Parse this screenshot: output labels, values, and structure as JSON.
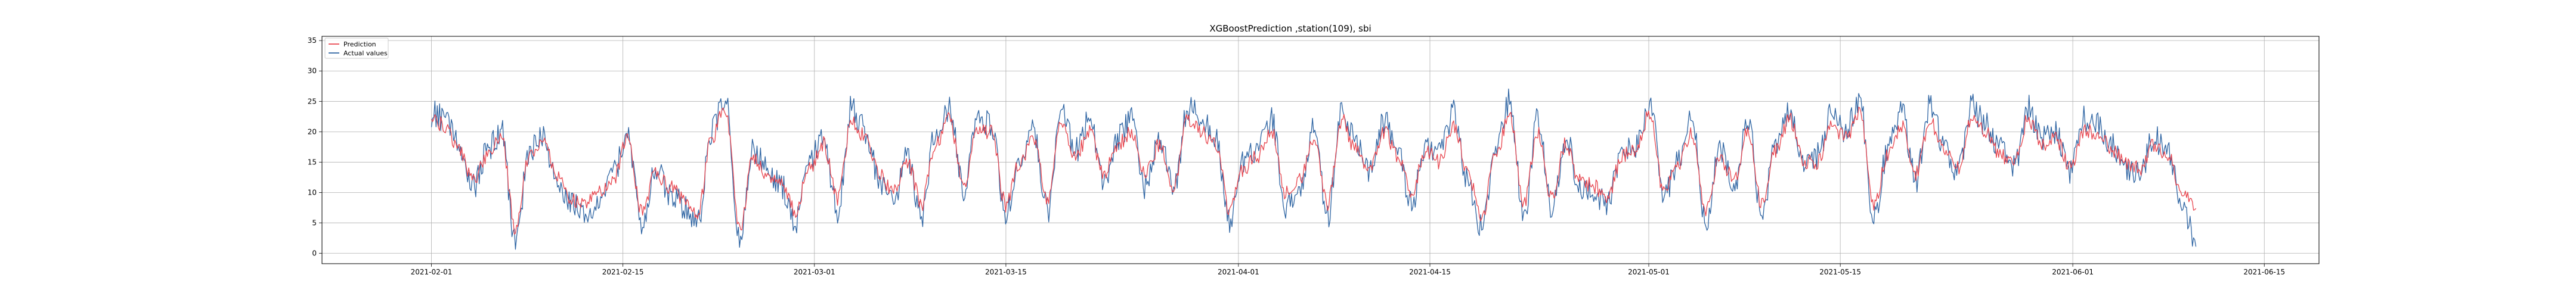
{
  "chart_data": {
    "type": "line",
    "title": "XGBoostPrediction ,station(109), sbi",
    "xlabel": "",
    "ylabel": "",
    "xlim": [
      "2021-01-24",
      "2021-06-19"
    ],
    "ylim": [
      -1.7,
      35.7
    ],
    "grid": true,
    "legend_position": "top-left",
    "x_ticks": [
      "2021-02-01",
      "2021-02-15",
      "2021-03-01",
      "2021-03-15",
      "2021-04-01",
      "2021-04-15",
      "2021-05-01",
      "2021-05-15",
      "2021-06-01",
      "2021-06-15"
    ],
    "y_ticks": [
      0,
      5,
      10,
      15,
      20,
      25,
      30,
      35
    ],
    "x_start": "2021-02-01",
    "x_end": "2021-06-10",
    "series": [
      {
        "name": "Prediction",
        "color": "#e8464f",
        "values_approx_daily": [
          22,
          21,
          17,
          12,
          16,
          19,
          4,
          16,
          18,
          13,
          9,
          8,
          10,
          12,
          19,
          7,
          13,
          11,
          9,
          6,
          19,
          24,
          4,
          16,
          13,
          12,
          7,
          14,
          18,
          9,
          22,
          19,
          13,
          10,
          15,
          8,
          18,
          22,
          11,
          20,
          20,
          8,
          15,
          19,
          9,
          22,
          16,
          20,
          13,
          18,
          20,
          13,
          18,
          11,
          22,
          20,
          18,
          7,
          14,
          16,
          20,
          10,
          12,
          19,
          8,
          22,
          17,
          14,
          20,
          16,
          10,
          17,
          15,
          21,
          13,
          6,
          16,
          23,
          8,
          20,
          9,
          18,
          12,
          11,
          9,
          16,
          17,
          23,
          10,
          14,
          20,
          7,
          16,
          12,
          20,
          8,
          17,
          22,
          15,
          15,
          21,
          19,
          23,
          8,
          16,
          21,
          13,
          22,
          17,
          14,
          22,
          20,
          16,
          15,
          22,
          18,
          19,
          14,
          20,
          20,
          17,
          15,
          14,
          18,
          16,
          10,
          8
        ]
      },
      {
        "name": "Actual values",
        "color": "#2f65a3",
        "values_approx_daily": [
          23,
          22,
          18,
          11,
          17,
          20,
          2,
          17,
          19,
          12,
          8,
          7,
          9,
          13,
          20,
          5,
          14,
          10,
          8,
          5,
          20,
          26,
          2,
          17,
          14,
          11,
          5,
          15,
          19,
          7,
          24,
          20,
          12,
          9,
          16,
          6,
          20,
          24,
          10,
          22,
          21,
          6,
          16,
          20,
          7,
          24,
          17,
          22,
          12,
          19,
          22,
          11,
          19,
          10,
          24,
          22,
          19,
          5,
          15,
          17,
          22,
          8,
          11,
          21,
          6,
          24,
          18,
          13,
          22,
          17,
          8,
          18,
          16,
          23,
          12,
          4,
          17,
          25,
          6,
          22,
          7,
          19,
          11,
          10,
          8,
          17,
          18,
          25,
          9,
          15,
          22,
          5,
          17,
          11,
          22,
          6,
          18,
          24,
          15,
          16,
          23,
          20,
          25,
          6,
          17,
          23,
          12,
          24,
          18,
          13,
          24,
          21,
          17,
          14,
          24,
          19,
          20,
          13,
          22,
          21,
          18,
          14,
          13,
          19,
          17,
          8,
          2
        ]
      }
    ]
  }
}
